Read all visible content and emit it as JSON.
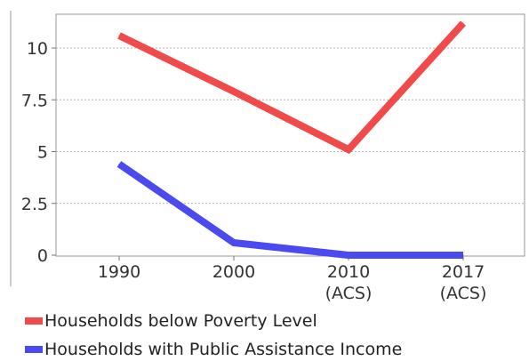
{
  "chart_data": {
    "type": "line",
    "title": "",
    "xlabel": "",
    "ylabel": "",
    "categories": [
      "1990",
      "2000",
      "2010\n(ACS)",
      "2017\n(ACS)"
    ],
    "ylim": [
      0,
      11.5
    ],
    "y_ticks": [
      "0",
      "2.5",
      "5",
      "7.5",
      "10"
    ],
    "grid": true,
    "legend_position": "bottom",
    "series": [
      {
        "name": "Households below Poverty Level",
        "color": "#f04a4a",
        "values": [
          10.6,
          7.9,
          5.1,
          11.2
        ]
      },
      {
        "name": "Households with Public Assistance Income",
        "color": "#4a4af0",
        "values": [
          4.4,
          0.6,
          0.0,
          0.0
        ]
      }
    ]
  }
}
